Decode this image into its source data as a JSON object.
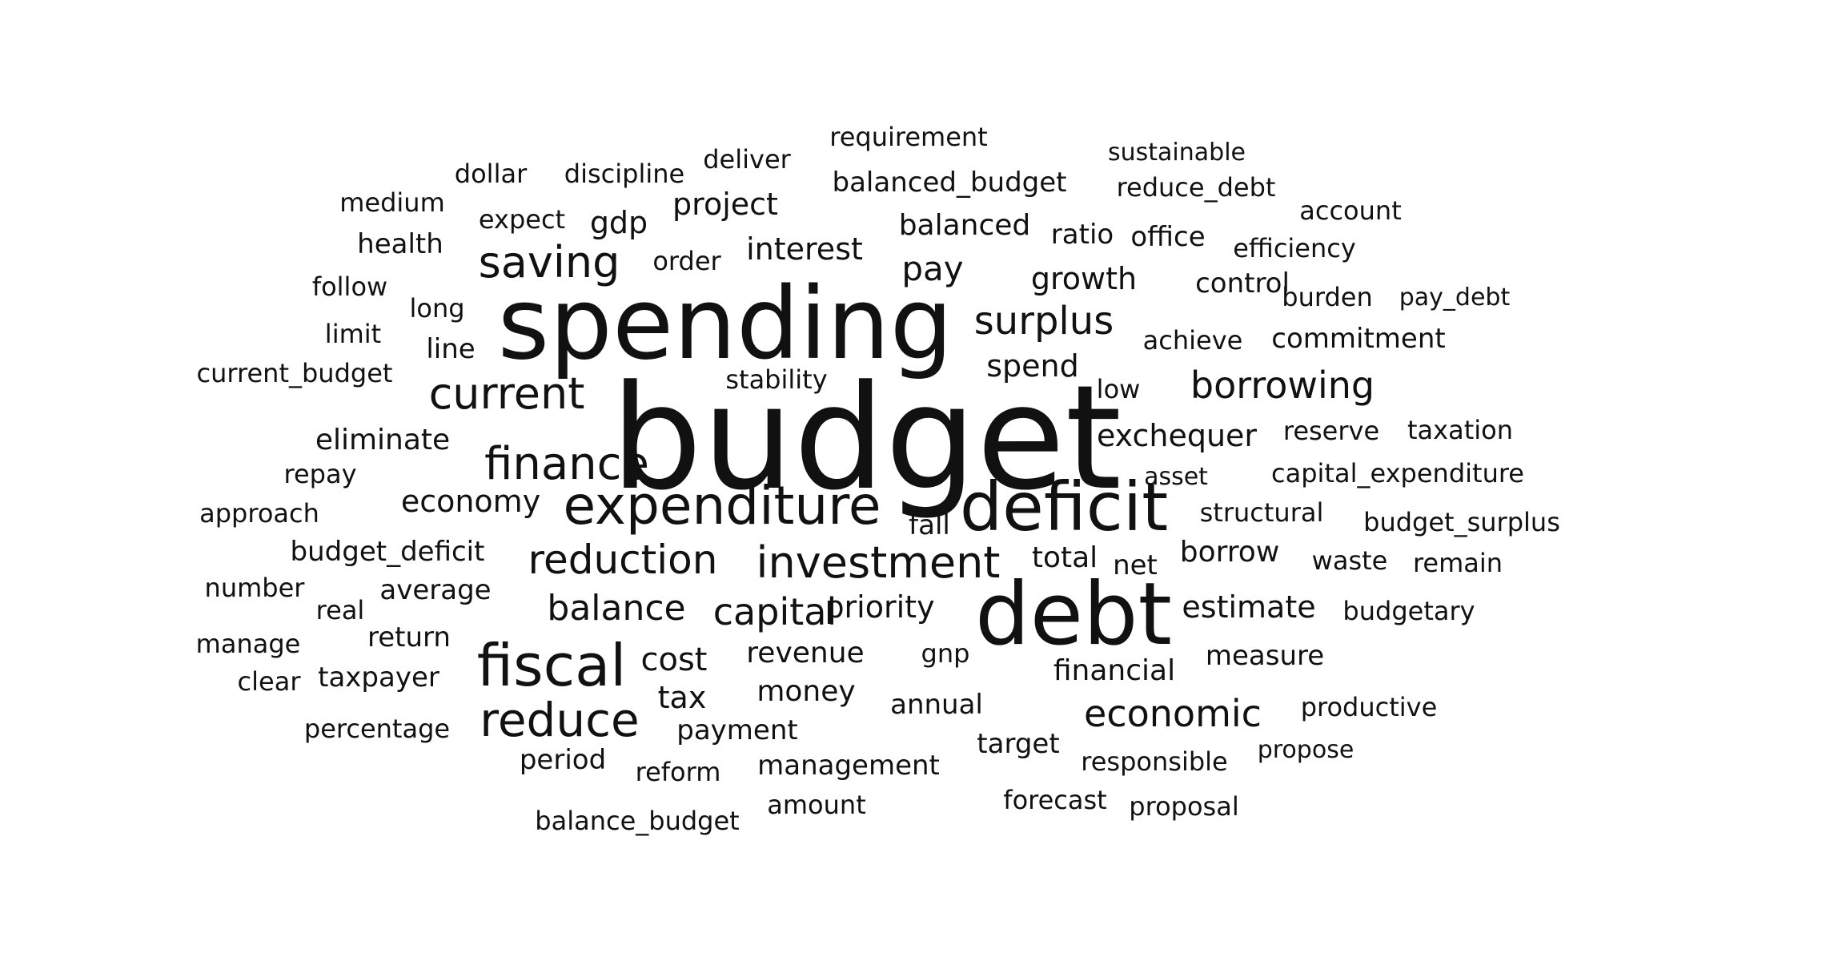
{
  "cloud": {
    "text_color": "#111111",
    "background": "#ffffff",
    "words": [
      "budget",
      "spending",
      "debt",
      "deficit",
      "expenditure",
      "fiscal",
      "investment",
      "finance",
      "reduce",
      "reduction",
      "current",
      "saving",
      "surplus",
      "borrowing",
      "capital",
      "balance",
      "economic",
      "exchequer",
      "interest",
      "economy",
      "project",
      "growth",
      "pay",
      "estimate",
      "borrow",
      "cost",
      "revenue",
      "money",
      "priority",
      "spend",
      "balanced",
      "financial",
      "eliminate",
      "payment",
      "total",
      "gdp",
      "net",
      "stability",
      "measure",
      "annual",
      "structural",
      "target",
      "period",
      "management",
      "budget_deficit",
      "control",
      "ratio",
      "office",
      "efficiency",
      "achieve",
      "commitment",
      "reserve",
      "taxation",
      "asset",
      "capital_expenditure",
      "budget_surplus",
      "waste",
      "remain",
      "budgetary",
      "productive",
      "responsible",
      "propose",
      "forecast",
      "proposal",
      "amount",
      "reform",
      "balance_budget",
      "tax",
      "fall",
      "gnp",
      "low",
      "current_budget",
      "requirement",
      "balanced_budget",
      "sustainable",
      "reduce_debt",
      "account",
      "burden",
      "pay_debt",
      "deliver",
      "discipline",
      "dollar",
      "medium",
      "expect",
      "health",
      "order",
      "follow",
      "long",
      "limit",
      "line",
      "repay",
      "approach",
      "number",
      "real",
      "average",
      "manage",
      "return",
      "clear",
      "taxpayer",
      "percentage"
    ]
  }
}
